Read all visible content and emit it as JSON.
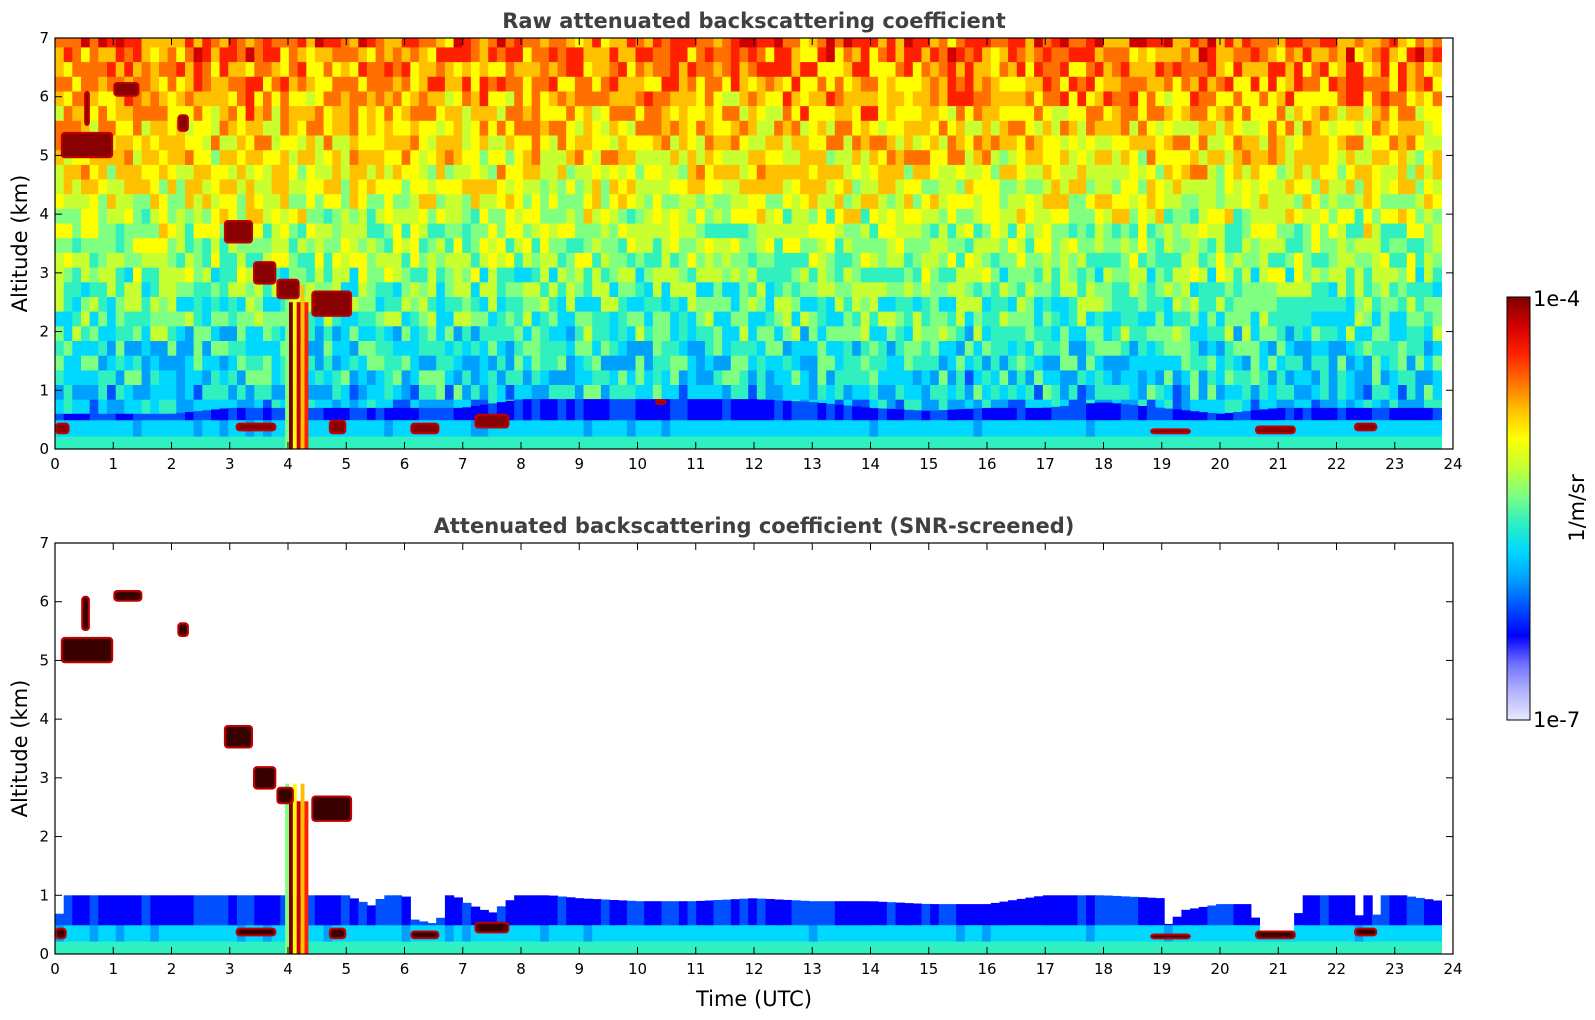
{
  "chart_data": [
    {
      "type": "heatmap",
      "title": "Raw attenuated backscattering coefficient",
      "xlabel": "",
      "ylabel": "Altitude (km)",
      "xlim": [
        0,
        24
      ],
      "ylim": [
        0,
        7
      ],
      "xticks": [
        "0",
        "1",
        "2",
        "3",
        "4",
        "5",
        "6",
        "7",
        "8",
        "9",
        "10",
        "11",
        "12",
        "13",
        "14",
        "15",
        "16",
        "17",
        "18",
        "19",
        "20",
        "21",
        "22",
        "23",
        "24"
      ],
      "yticks": [
        "0",
        "1",
        "2",
        "3",
        "4",
        "5",
        "6",
        "7"
      ],
      "data_end_time": 23.8,
      "noise_screened": false,
      "aerosol_layer_top_km": [
        [
          0,
          0.6
        ],
        [
          1,
          0.6
        ],
        [
          2,
          0.6
        ],
        [
          3,
          0.7
        ],
        [
          4,
          0.7
        ],
        [
          5,
          0.7
        ],
        [
          6,
          0.7
        ],
        [
          7,
          0.7
        ],
        [
          8,
          0.85
        ],
        [
          9,
          0.85
        ],
        [
          10,
          0.85
        ],
        [
          11,
          0.85
        ],
        [
          12,
          0.85
        ],
        [
          13,
          0.8
        ],
        [
          14,
          0.7
        ],
        [
          15,
          0.65
        ],
        [
          16,
          0.7
        ],
        [
          17,
          0.7
        ],
        [
          18,
          0.8
        ],
        [
          19,
          0.7
        ],
        [
          20,
          0.6
        ],
        [
          21,
          0.7
        ],
        [
          22,
          0.7
        ],
        [
          23,
          0.7
        ],
        [
          23.8,
          0.7
        ]
      ],
      "cloud_features": [
        {
          "t0": 0.0,
          "t1": 0.25,
          "z0": 0.25,
          "z1": 0.45
        },
        {
          "t0": 0.1,
          "t1": 1.0,
          "z0": 4.95,
          "z1": 5.4
        },
        {
          "t0": 0.5,
          "t1": 0.6,
          "z0": 5.5,
          "z1": 6.1
        },
        {
          "t0": 1.0,
          "t1": 1.45,
          "z0": 6.0,
          "z1": 6.25
        },
        {
          "t0": 2.1,
          "t1": 2.3,
          "z0": 5.4,
          "z1": 5.7
        },
        {
          "t0": 2.9,
          "t1": 3.4,
          "z0": 3.5,
          "z1": 3.9
        },
        {
          "t0": 3.4,
          "t1": 3.8,
          "z0": 2.8,
          "z1": 3.2
        },
        {
          "t0": 3.8,
          "t1": 4.2,
          "z0": 2.55,
          "z1": 2.9
        },
        {
          "t0": 4.4,
          "t1": 5.1,
          "z0": 2.25,
          "z1": 2.7
        },
        {
          "t0": 3.1,
          "t1": 3.8,
          "z0": 0.3,
          "z1": 0.45
        },
        {
          "t0": 4.7,
          "t1": 5.0,
          "z0": 0.25,
          "z1": 0.5
        },
        {
          "t0": 6.1,
          "t1": 6.6,
          "z0": 0.25,
          "z1": 0.45
        },
        {
          "t0": 7.2,
          "t1": 7.8,
          "z0": 0.35,
          "z1": 0.6
        },
        {
          "t0": 10.3,
          "t1": 10.5,
          "z0": 0.75,
          "z1": 0.85
        },
        {
          "t0": 18.8,
          "t1": 19.5,
          "z0": 0.25,
          "z1": 0.35
        },
        {
          "t0": 20.6,
          "t1": 21.3,
          "z0": 0.25,
          "z1": 0.4
        },
        {
          "t0": 22.3,
          "t1": 22.7,
          "z0": 0.3,
          "z1": 0.45
        }
      ],
      "convective_plume": {
        "t0": 3.95,
        "t1": 4.35,
        "z0": 0.0,
        "z1": 2.8
      }
    },
    {
      "type": "heatmap",
      "title": "Attenuated backscattering coefficient (SNR-screened)",
      "xlabel": "Time (UTC)",
      "ylabel": "Altitude (km)",
      "xlim": [
        0,
        24
      ],
      "ylim": [
        0,
        7
      ],
      "xticks": [
        "0",
        "1",
        "2",
        "3",
        "4",
        "5",
        "6",
        "7",
        "8",
        "9",
        "10",
        "11",
        "12",
        "13",
        "14",
        "15",
        "16",
        "17",
        "18",
        "19",
        "20",
        "21",
        "22",
        "23",
        "24"
      ],
      "yticks": [
        "0",
        "1",
        "2",
        "3",
        "4",
        "5",
        "6",
        "7"
      ],
      "data_end_time": 23.8,
      "noise_screened": true,
      "aerosol_layer_top_km": [
        [
          0,
          0.5
        ],
        [
          0.2,
          1.0
        ],
        [
          1,
          1.05
        ],
        [
          2,
          1.0
        ],
        [
          3,
          1.05
        ],
        [
          4,
          1.05
        ],
        [
          5,
          1.0
        ],
        [
          5.5,
          0.8
        ],
        [
          5.7,
          1.15
        ],
        [
          6.0,
          1.1
        ],
        [
          6.1,
          0.6
        ],
        [
          6.6,
          0.5
        ],
        [
          6.7,
          1.1
        ],
        [
          7.1,
          0.85
        ],
        [
          7.5,
          0.7
        ],
        [
          8,
          1.05
        ],
        [
          9,
          0.95
        ],
        [
          10,
          0.9
        ],
        [
          11,
          0.9
        ],
        [
          12,
          0.95
        ],
        [
          13,
          0.9
        ],
        [
          14,
          0.9
        ],
        [
          15,
          0.85
        ],
        [
          16,
          0.85
        ],
        [
          17,
          1.0
        ],
        [
          18,
          1.0
        ],
        [
          19,
          0.95
        ],
        [
          19.1,
          0.5
        ],
        [
          19.4,
          0.75
        ],
        [
          20,
          0.85
        ],
        [
          20.5,
          0.85
        ],
        [
          20.7,
          0.4
        ],
        [
          21.3,
          0.4
        ],
        [
          21.4,
          1.05
        ],
        [
          22.3,
          1.05
        ],
        [
          22.4,
          0.6
        ],
        [
          22.5,
          1.05
        ],
        [
          22.6,
          1.05
        ],
        [
          22.7,
          0.6
        ],
        [
          22.8,
          1.05
        ],
        [
          23.8,
          0.9
        ]
      ],
      "cloud_features": [
        {
          "t0": 0.0,
          "t1": 0.2,
          "z0": 0.25,
          "z1": 0.45
        },
        {
          "t0": 0.1,
          "t1": 1.0,
          "z0": 4.95,
          "z1": 5.4
        },
        {
          "t0": 0.45,
          "t1": 0.6,
          "z0": 5.5,
          "z1": 6.1
        },
        {
          "t0": 1.0,
          "t1": 1.5,
          "z0": 6.0,
          "z1": 6.2
        },
        {
          "t0": 2.1,
          "t1": 2.3,
          "z0": 5.4,
          "z1": 5.65
        },
        {
          "t0": 2.9,
          "t1": 3.4,
          "z0": 3.5,
          "z1": 3.9
        },
        {
          "t0": 3.4,
          "t1": 3.8,
          "z0": 2.8,
          "z1": 3.2
        },
        {
          "t0": 3.8,
          "t1": 4.1,
          "z0": 2.55,
          "z1": 2.85
        },
        {
          "t0": 4.4,
          "t1": 5.1,
          "z0": 2.25,
          "z1": 2.7
        },
        {
          "t0": 3.1,
          "t1": 3.8,
          "z0": 0.3,
          "z1": 0.45
        },
        {
          "t0": 4.7,
          "t1": 5.0,
          "z0": 0.25,
          "z1": 0.45
        },
        {
          "t0": 6.1,
          "t1": 6.6,
          "z0": 0.25,
          "z1": 0.4
        },
        {
          "t0": 7.2,
          "t1": 7.8,
          "z0": 0.35,
          "z1": 0.55
        },
        {
          "t0": 18.8,
          "t1": 19.5,
          "z0": 0.25,
          "z1": 0.35
        },
        {
          "t0": 20.6,
          "t1": 21.3,
          "z0": 0.25,
          "z1": 0.4
        },
        {
          "t0": 22.3,
          "t1": 22.7,
          "z0": 0.3,
          "z1": 0.45
        }
      ],
      "convective_plume": {
        "t0": 3.95,
        "t1": 4.35,
        "z0": 0.0,
        "z1": 2.9
      }
    }
  ],
  "colorbar": {
    "label": "1/m/sr",
    "max_label": "1e-4",
    "min_label": "1e-7",
    "scale": "log",
    "vmin": 1e-07,
    "vmax": 0.0001,
    "colors": [
      "#e8e8ff",
      "#b4b4ff",
      "#7070ff",
      "#0000ff",
      "#0050ff",
      "#00a0ff",
      "#00d8ff",
      "#30f0c0",
      "#80ff80",
      "#c8ff30",
      "#ffff00",
      "#ffc000",
      "#ff7000",
      "#ff2000",
      "#d00000",
      "#800000"
    ]
  }
}
